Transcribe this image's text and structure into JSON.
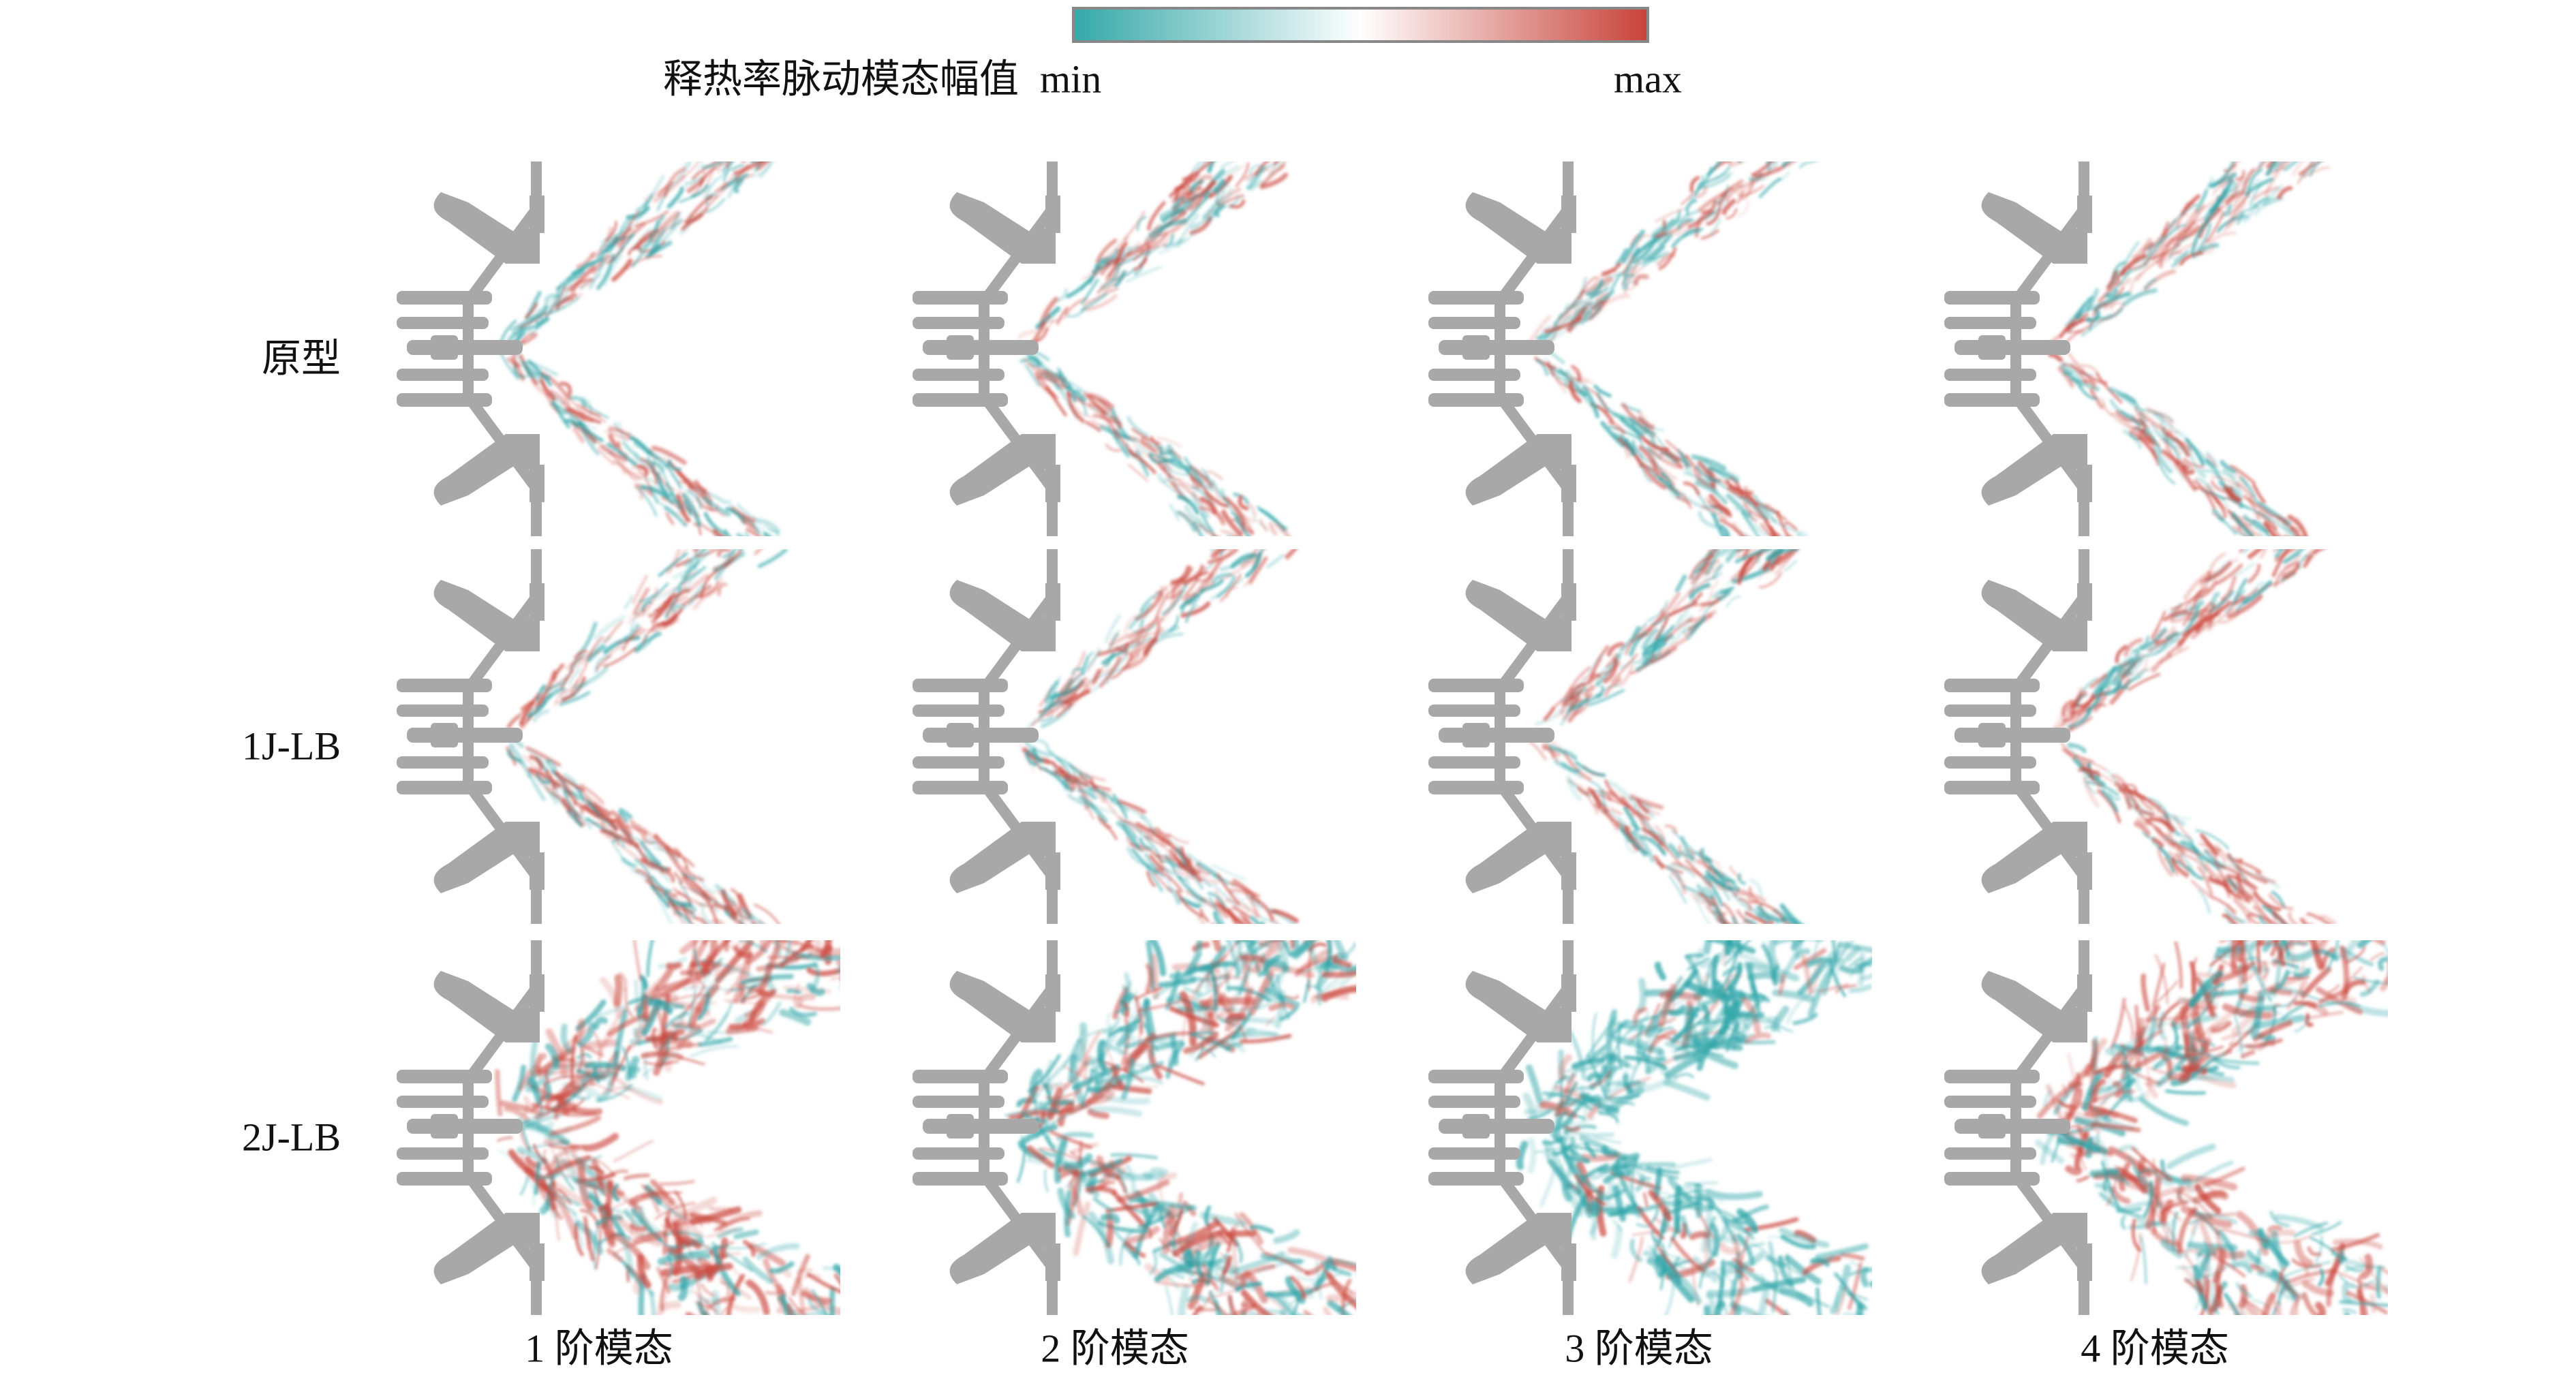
{
  "colorbar": {
    "title": "释热率脉动模态幅值",
    "min": "min",
    "max": "max"
  },
  "rows": [
    "原型",
    "1J-LB",
    "2J-LB"
  ],
  "columns": [
    "1 阶模态",
    "2 阶模态",
    "3 阶模态",
    "4 阶模态"
  ]
}
